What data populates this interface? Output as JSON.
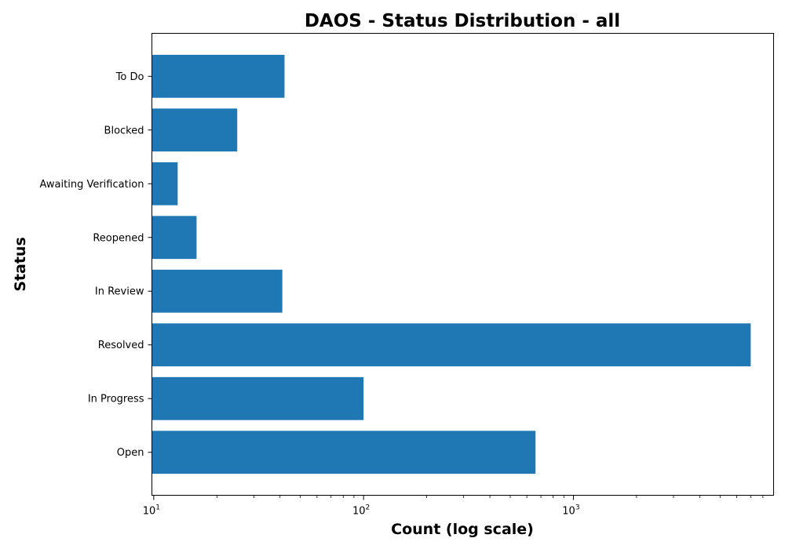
{
  "chart_data": {
    "type": "bar",
    "orientation": "horizontal",
    "title": "DAOS - Status Distribution - all",
    "xlabel": "Count (log scale)",
    "ylabel": "Status",
    "x_scale": "log",
    "xlim": [
      9.8,
      9000
    ],
    "x_ticks": [
      {
        "base": "10",
        "exp": "1",
        "value": 10
      },
      {
        "base": "10",
        "exp": "2",
        "value": 100
      },
      {
        "base": "10",
        "exp": "3",
        "value": 1000
      }
    ],
    "categories": [
      "Open",
      "In Progress",
      "Resolved",
      "In Review",
      "Reopened",
      "Awaiting Verification",
      "Blocked",
      "To Do"
    ],
    "values": [
      660,
      100,
      7000,
      41,
      16,
      13,
      25,
      42
    ],
    "bar_color": "#1f77b4",
    "grid": false,
    "legend": "none"
  }
}
